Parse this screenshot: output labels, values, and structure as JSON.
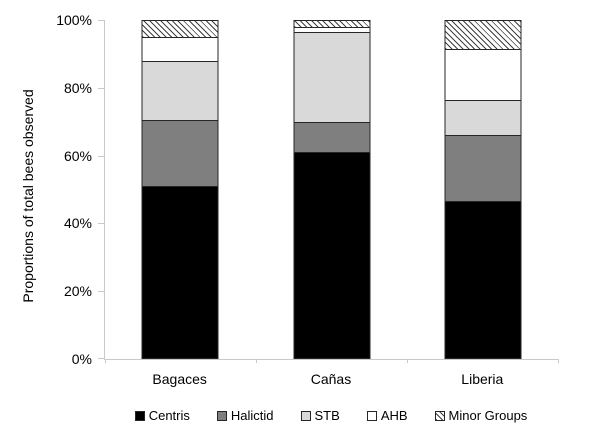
{
  "chart_data": {
    "type": "bar",
    "stacked": true,
    "title": "",
    "xlabel": "",
    "ylabel": "Proportions of total bees observed",
    "categories": [
      "Bagaces",
      "Cañas",
      "Liberia"
    ],
    "series": [
      {
        "name": "Centris",
        "values": [
          51,
          61,
          46.5
        ],
        "color": "#000000",
        "pattern": "solid"
      },
      {
        "name": "Halictid",
        "values": [
          19.5,
          9,
          19.5
        ],
        "color": "#7f7f7f",
        "pattern": "solid"
      },
      {
        "name": "STB",
        "values": [
          17.5,
          26.5,
          10.5
        ],
        "color": "#d9d9d9",
        "pattern": "solid"
      },
      {
        "name": "AHB",
        "values": [
          7,
          1.5,
          15
        ],
        "color": "#ffffff",
        "pattern": "solid"
      },
      {
        "name": "Minor Groups",
        "values": [
          5,
          2,
          8.5
        ],
        "color": "#ffffff",
        "pattern": "diagonal-hatch"
      }
    ],
    "ylim": [
      0,
      100
    ],
    "ytick_values": [
      0,
      20,
      40,
      60,
      80,
      100
    ],
    "ytick_labels": [
      "0%",
      "20%",
      "40%",
      "60%",
      "80%",
      "100%"
    ],
    "grid": false,
    "legend_position": "bottom"
  },
  "styles": {
    "axis_color": "#c9c9c9",
    "segment_border_color": "#262626",
    "hatch_line_color": "#404040",
    "background": "#ffffff"
  }
}
